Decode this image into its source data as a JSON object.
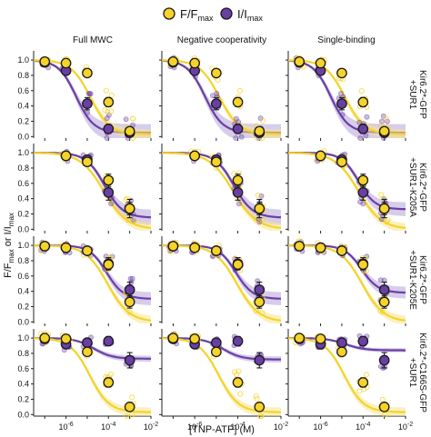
{
  "legend": {
    "items": [
      {
        "label": "F/F",
        "sub": "max",
        "color": "#f5d328"
      },
      {
        "label": "I/I",
        "sub": "max",
        "color": "#6a3fa5"
      }
    ]
  },
  "columns": [
    "Full MWC",
    "Negative cooperativity",
    "Single-binding"
  ],
  "rows": [
    "Kir6.2*-GFP\n+SUR1",
    "Kir6.2*-GFP\n+SUR1-K205A",
    "Kir6.2*-GFP\n+SUR1-K205E",
    "Kir6.2*-C166S-GFP\n+SUR1"
  ],
  "ylabel": {
    "text": "F/F",
    "sub1": "max",
    "mid": " or I/I",
    "sub2": "max"
  },
  "xlabel": "[TNP-ATP] (M)",
  "y_ticks": [
    "0.0",
    "0.2",
    "0.4",
    "0.6",
    "0.8",
    "1.0"
  ],
  "x_ticks": [
    {
      "base": "10",
      "exp": "-6"
    },
    {
      "base": "10",
      "exp": "-4"
    },
    {
      "base": "10",
      "exp": "-2"
    }
  ],
  "colors": {
    "fluorescence": "#f5d328",
    "current": "#6a3fa5",
    "fluor_band": "#f7e68a",
    "curr_band": "#b7a3d8",
    "marker_edge": "#1a1a1a"
  },
  "chart_data": {
    "type": "scatter",
    "xscale": "log",
    "xlim": [
      3e-08,
      0.01
    ],
    "ylim": [
      -0.02,
      1.12
    ],
    "x": [
      1e-07,
      1e-06,
      1e-05,
      0.0001,
      0.001
    ],
    "panels": [
      {
        "row": 0,
        "fluor": [
          0.98,
          0.96,
          0.83,
          0.45,
          0.07
        ],
        "curr": [
          0.97,
          0.86,
          0.43,
          0.1,
          0.05
        ],
        "fluor_err": [
          0.03,
          0.03,
          0.05,
          0.06,
          0.04
        ],
        "curr_err": [
          0.02,
          0.05,
          0.08,
          0.06,
          0.03
        ]
      },
      {
        "row": 1,
        "fluor": [
          null,
          0.96,
          0.88,
          0.64,
          0.27
        ],
        "curr": [
          null,
          0.96,
          0.91,
          0.48,
          0.27
        ],
        "fluor_err": [
          null,
          0.04,
          0.05,
          0.08,
          0.08
        ],
        "curr_err": [
          null,
          0.03,
          0.04,
          0.1,
          0.12
        ]
      },
      {
        "row": 2,
        "fluor": [
          0.99,
          0.97,
          0.93,
          0.75,
          0.26
        ],
        "curr": [
          0.99,
          0.97,
          0.93,
          0.76,
          0.42
        ],
        "fluor_err": [
          0.03,
          0.03,
          0.04,
          0.06,
          0.08
        ],
        "curr_err": [
          0.03,
          0.03,
          0.04,
          0.08,
          0.1
        ]
      },
      {
        "row": 3,
        "fluor": [
          1.0,
          0.99,
          0.82,
          0.42,
          0.1
        ],
        "curr": [
          0.99,
          0.92,
          0.94,
          0.96,
          0.71
        ],
        "fluor_err": [
          0.04,
          0.03,
          0.05,
          0.06,
          0.04
        ],
        "curr_err": [
          0.03,
          0.05,
          0.05,
          0.06,
          0.1
        ]
      }
    ],
    "fits": {
      "0": {
        "fluor": {
          "ic50": 1.4e-05,
          "h": 0.95,
          "min": 0.03
        },
        "curr": {
          "ic50": 3e-06,
          "h": 1.05,
          "min": 0.05
        }
      },
      "1": {
        "fluor": {
          "ic50": 6e-05,
          "h": 0.8,
          "min": 0.0
        },
        "curr": [
          {
            "ic50": 6.5e-05,
            "h": 1.0,
            "min": 0.15
          },
          {
            "ic50": 6.5e-05,
            "h": 1.0,
            "min": 0.15
          },
          {
            "ic50": 6e-05,
            "h": 1.1,
            "min": 0.26
          }
        ]
      },
      "2": {
        "fluor": {
          "ic50": 9e-05,
          "h": 0.85,
          "min": 0.0
        },
        "curr": [
          {
            "ic50": 8e-05,
            "h": 1.1,
            "min": 0.3
          },
          {
            "ic50": 8e-05,
            "h": 1.1,
            "min": 0.3
          },
          {
            "ic50": 8.5e-05,
            "h": 1.1,
            "min": 0.38
          }
        ]
      },
      "3": {
        "fluor": {
          "ic50": 1.3e-05,
          "h": 0.95,
          "min": 0.03
        },
        "curr": [
          {
            "ic50": 2e-05,
            "h": 1.0,
            "min": 0.73
          },
          {
            "ic50": 2e-05,
            "h": 1.0,
            "min": 0.72
          },
          {
            "ic50": 1.5e-05,
            "h": 1.0,
            "min": 0.84
          }
        ]
      }
    }
  }
}
